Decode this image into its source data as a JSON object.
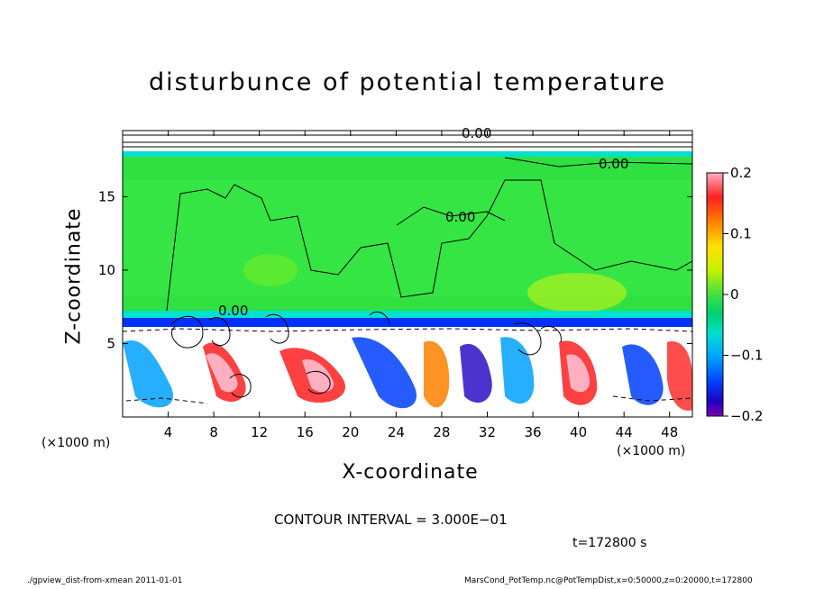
{
  "chart_data": {
    "type": "heatmap",
    "title": "disturbunce of potential temperature",
    "xlabel": "X-coordinate",
    "ylabel": "Z-coordinate",
    "x_unit": "(×1000 m)",
    "xlim": [
      0,
      50
    ],
    "ylim": [
      0,
      19.5
    ],
    "x_ticks": [
      4,
      8,
      12,
      16,
      20,
      24,
      28,
      32,
      36,
      40,
      44,
      48
    ],
    "y_ticks": [
      5,
      10,
      15
    ],
    "colorbar": {
      "range": [
        -0.2,
        0.2
      ],
      "tick_values": [
        0.2,
        0.1,
        0,
        -0.1,
        -0.2
      ],
      "tick_labels": [
        "0.2",
        "0.1",
        "0",
        "−0.1",
        "−0.2"
      ],
      "colors": [
        "#ffb0c0",
        "#ff2020",
        "#ff8000",
        "#ffe000",
        "#c8f000",
        "#40e040",
        "#00d070",
        "#00e0d0",
        "#00a0ff",
        "#0040ff",
        "#2000c0",
        "#8000b0"
      ]
    },
    "contour_labels": [
      "0.00",
      "0.00",
      "0.00",
      "0.00"
    ],
    "approx_field": {
      "upper_layer_z": [
        6.5,
        18.5
      ],
      "upper_layer_value": 0.0,
      "interface_z": 6.5,
      "interface_value": -0.15,
      "lower_layer_z": [
        0,
        6.5
      ],
      "lower_layer_range": [
        -0.2,
        0.2
      ]
    }
  },
  "contour_interval": "CONTOUR INTERVAL = 3.000E−01",
  "time_label": "t=172800 s",
  "footer_left": "./gpview_dist-from-xmean  2011-01-01",
  "footer_right": "MarsCond_PotTemp.nc@PotTempDist,x=0:50000,z=0:20000,t=172800",
  "colors": {
    "field_zero": "#30e040",
    "band_negative": "#0030ff",
    "anomaly_positive": "#ff2020",
    "anomaly_white": "#ffffff"
  }
}
